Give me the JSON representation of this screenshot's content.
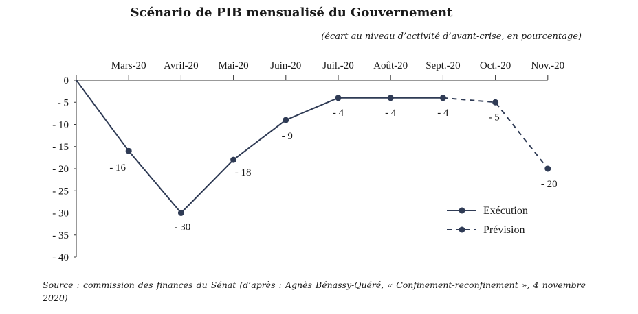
{
  "chart_data": {
    "type": "line",
    "title": "Scénario de PIB mensualisé du Gouvernement",
    "subtitle": "(écart au niveau d’activité d’avant-crise, en pourcentage)",
    "categories": [
      "",
      "Mars-20",
      "Avril-20",
      "Mai-20",
      "Juin-20",
      "Juil.-20",
      "Août-20",
      "Sept.-20",
      "Oct.-20",
      "Nov.-20"
    ],
    "series": [
      {
        "name": "Exécution",
        "style": "solid",
        "points": [
          {
            "index": 0,
            "value": 0,
            "label": ""
          },
          {
            "index": 1,
            "value": -16,
            "label": "- 16"
          },
          {
            "index": 2,
            "value": -30,
            "label": "- 30"
          },
          {
            "index": 3,
            "value": -18,
            "label": "- 18"
          },
          {
            "index": 4,
            "value": -9,
            "label": "- 9"
          },
          {
            "index": 5,
            "value": -4,
            "label": "- 4"
          },
          {
            "index": 6,
            "value": -4,
            "label": "- 4"
          },
          {
            "index": 7,
            "value": -4,
            "label": "- 4"
          }
        ]
      },
      {
        "name": "Prévision",
        "style": "dashed",
        "points": [
          {
            "index": 7,
            "value": -4,
            "label": ""
          },
          {
            "index": 8,
            "value": -5,
            "label": "- 5"
          },
          {
            "index": 9,
            "value": -20,
            "label": "- 20"
          }
        ]
      }
    ],
    "yticks": [
      {
        "value": 0,
        "label": "0"
      },
      {
        "value": -5,
        "label": "- 5"
      },
      {
        "value": -10,
        "label": "- 10"
      },
      {
        "value": -15,
        "label": "- 15"
      },
      {
        "value": -20,
        "label": "- 20"
      },
      {
        "value": -25,
        "label": "- 25"
      },
      {
        "value": -30,
        "label": "- 30"
      },
      {
        "value": -35,
        "label": "- 35"
      },
      {
        "value": -40,
        "label": "- 40"
      }
    ],
    "ylim": [
      -40,
      0
    ],
    "grid": false,
    "legend_position": "bottom-right",
    "line_color": "#2f3b55"
  },
  "source_text": "Source : commission des finances du Sénat (d’après : Agnès Bénassy-Quéré, « Confinement-reconfinement », 4 novembre 2020)"
}
